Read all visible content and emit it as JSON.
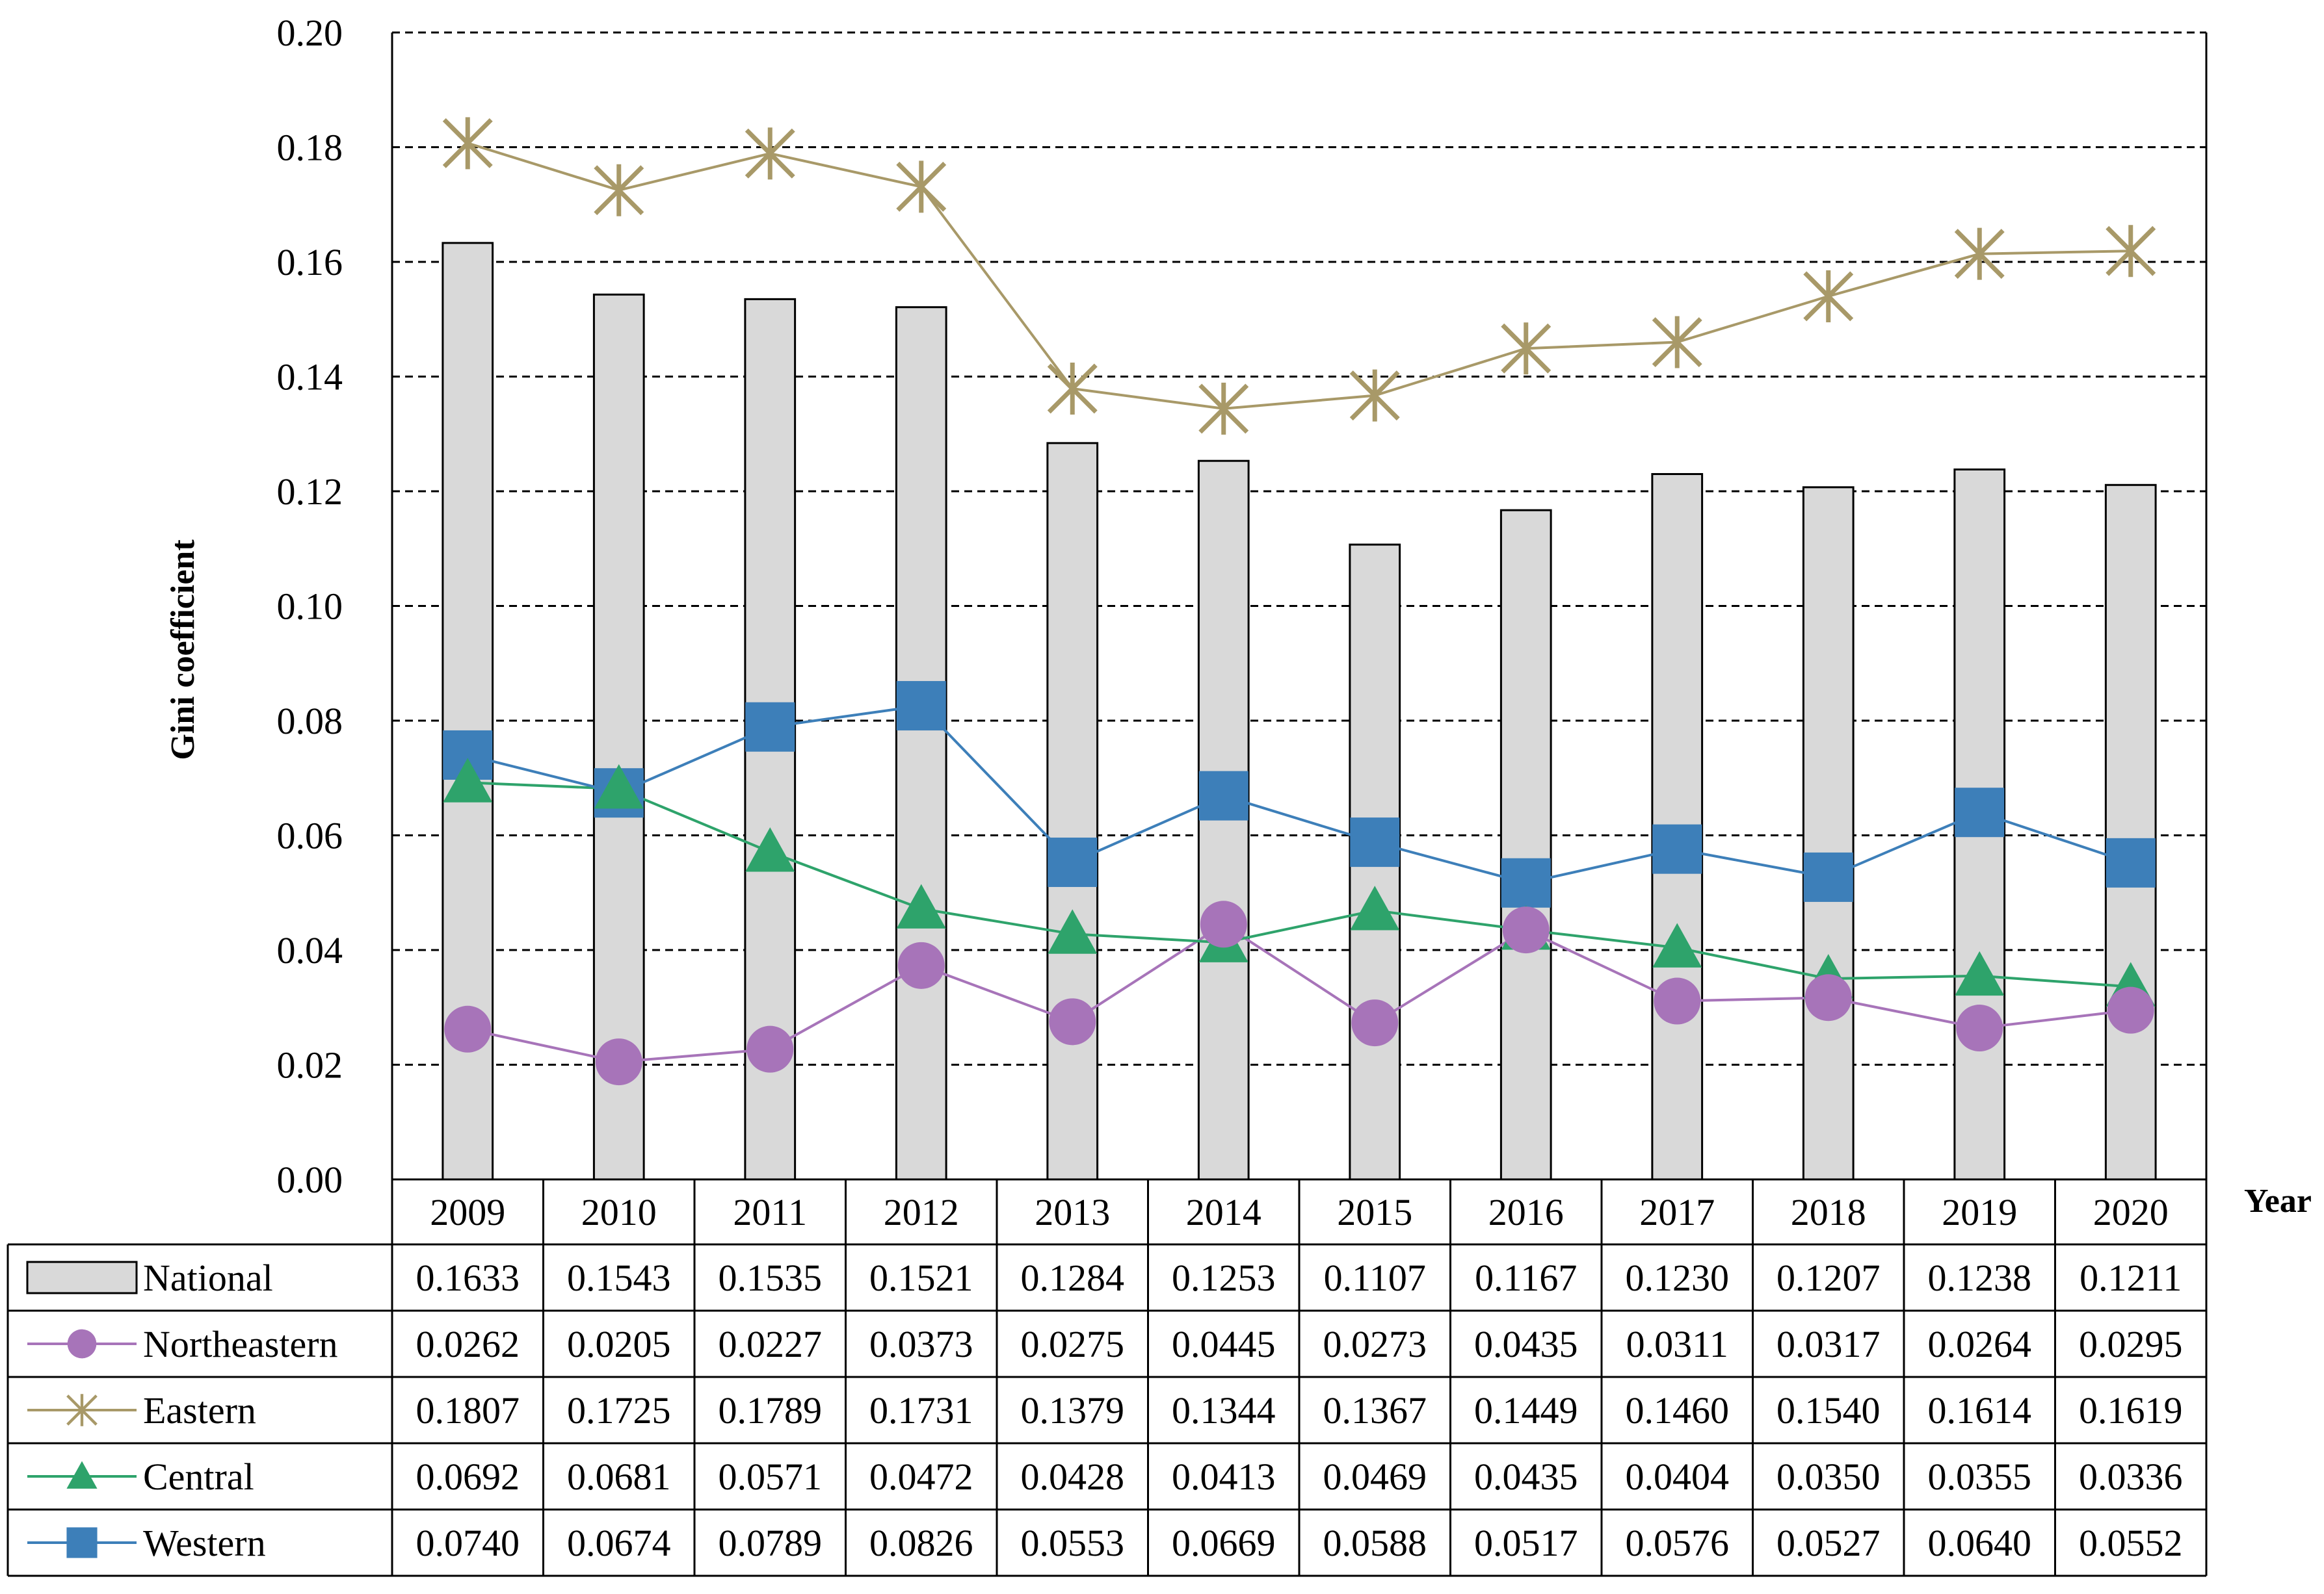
{
  "chart_data": {
    "type": "bar+line",
    "title": "",
    "ylabel": "Gini coefficient",
    "xlabel": "Year",
    "ylim": [
      0,
      0.2
    ],
    "yticks": [
      "0.00",
      "0.02",
      "0.04",
      "0.06",
      "0.08",
      "0.10",
      "0.12",
      "0.14",
      "0.16",
      "0.18",
      "0.20"
    ],
    "grid": "horizontal dashed",
    "categories": [
      "2009",
      "2010",
      "2011",
      "2012",
      "2013",
      "2014",
      "2015",
      "2016",
      "2017",
      "2018",
      "2019",
      "2020"
    ],
    "series": [
      {
        "name": "National",
        "kind": "bar",
        "color": "#d9d9d9",
        "values": [
          0.1633,
          0.1543,
          0.1535,
          0.1521,
          0.1284,
          0.1253,
          0.1107,
          0.1167,
          0.123,
          0.1207,
          0.1238,
          0.1211
        ],
        "labels": [
          "0.1633",
          "0.1543",
          "0.1535",
          "0.1521",
          "0.1284",
          "0.1253",
          "0.1107",
          "0.1167",
          "0.1230",
          "0.1207",
          "0.1238",
          "0.1211"
        ]
      },
      {
        "name": "Northeastern",
        "kind": "line",
        "marker": "circle",
        "color": "#a774b9",
        "values": [
          0.0262,
          0.0205,
          0.0227,
          0.0373,
          0.0275,
          0.0445,
          0.0273,
          0.0435,
          0.0311,
          0.0317,
          0.0264,
          0.0295
        ],
        "labels": [
          "0.0262",
          "0.0205",
          "0.0227",
          "0.0373",
          "0.0275",
          "0.0445",
          "0.0273",
          "0.0435",
          "0.0311",
          "0.0317",
          "0.0264",
          "0.0295"
        ]
      },
      {
        "name": "Eastern",
        "kind": "line",
        "marker": "star",
        "color": "#a89968",
        "values": [
          0.1807,
          0.1725,
          0.1789,
          0.1731,
          0.1379,
          0.1344,
          0.1367,
          0.1449,
          0.146,
          0.154,
          0.1614,
          0.1619
        ],
        "labels": [
          "0.1807",
          "0.1725",
          "0.1789",
          "0.1731",
          "0.1379",
          "0.1344",
          "0.1367",
          "0.1449",
          "0.1460",
          "0.1540",
          "0.1614",
          "0.1619"
        ]
      },
      {
        "name": "Central",
        "kind": "line",
        "marker": "triangle",
        "color": "#2ea36b",
        "values": [
          0.0692,
          0.0681,
          0.0571,
          0.0472,
          0.0428,
          0.0413,
          0.0469,
          0.0435,
          0.0404,
          0.035,
          0.0355,
          0.0336
        ],
        "labels": [
          "0.0692",
          "0.0681",
          "0.0571",
          "0.0472",
          "0.0428",
          "0.0413",
          "0.0469",
          "0.0435",
          "0.0404",
          "0.0350",
          "0.0355",
          "0.0336"
        ]
      },
      {
        "name": "Western",
        "kind": "line",
        "marker": "square",
        "color": "#3d7fb9",
        "values": [
          0.074,
          0.0674,
          0.0789,
          0.0826,
          0.0553,
          0.0669,
          0.0588,
          0.0517,
          0.0576,
          0.0527,
          0.064,
          0.0552
        ],
        "labels": [
          "0.0740",
          "0.0674",
          "0.0789",
          "0.0826",
          "0.0553",
          "0.0669",
          "0.0588",
          "0.0517",
          "0.0576",
          "0.0527",
          "0.0640",
          "0.0552"
        ]
      }
    ]
  }
}
